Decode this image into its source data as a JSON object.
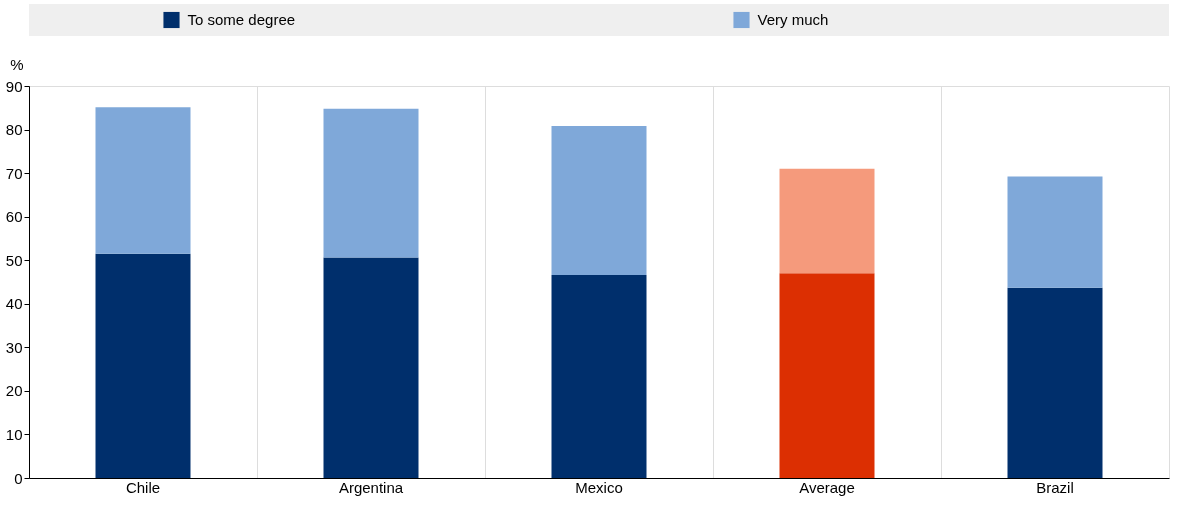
{
  "chart_data": {
    "type": "bar",
    "stacked": true,
    "ylabel": "%",
    "categories": [
      "Chile",
      "Argentina",
      "Mexico",
      "Average",
      "Brazil"
    ],
    "series": [
      {
        "name": "To some degree",
        "color": "#002f6c",
        "colors": [
          "#002f6c",
          "#002f6c",
          "#002f6c",
          "#dc2f02",
          "#002f6c"
        ],
        "values": [
          51.5,
          50.6,
          46.6,
          47.0,
          43.7
        ]
      },
      {
        "name": "Very much",
        "color": "#7fa8d9",
        "colors": [
          "#7fa8d9",
          "#7fa8d9",
          "#7fa8d9",
          "#f59a7c",
          "#7fa8d9"
        ],
        "values": [
          33.6,
          34.2,
          34.2,
          24.0,
          25.5
        ]
      }
    ],
    "ylim": [
      0,
      90
    ],
    "yticks": [
      0,
      10,
      20,
      30,
      40,
      50,
      60,
      70,
      80,
      90
    ],
    "grid": "x",
    "legend": "top"
  }
}
